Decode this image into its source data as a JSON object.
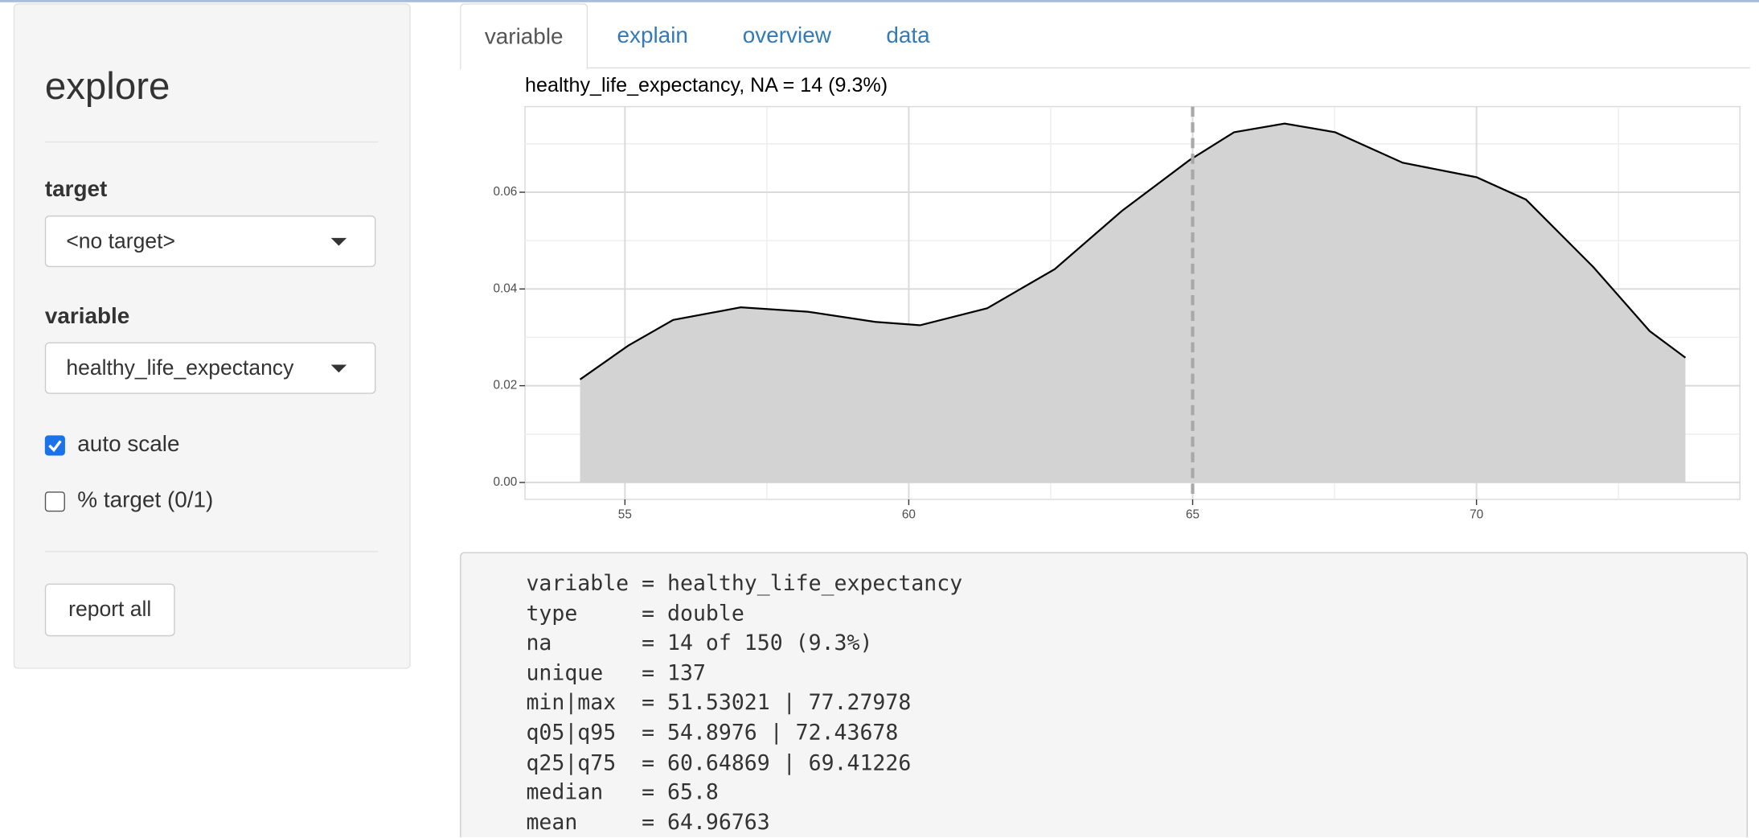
{
  "sidebar": {
    "title": "explore",
    "target_label": "target",
    "target_value": "<no target>",
    "variable_label": "variable",
    "variable_value": "healthy_life_expectancy",
    "auto_scale": {
      "label": "auto scale",
      "checked": true
    },
    "pct_target": {
      "label": "% target (0/1)",
      "checked": false
    },
    "button": "report all"
  },
  "tabs": {
    "items": [
      "variable",
      "explain",
      "overview",
      "data"
    ],
    "active": 0
  },
  "chart_data": {
    "type": "density",
    "title": "healthy_life_expectancy, NA = 14 (9.3%)",
    "x": [
      54.21,
      55.06,
      55.85,
      57.04,
      58.22,
      59.41,
      60.2,
      61.38,
      62.57,
      63.75,
      64.94,
      65.73,
      66.62,
      67.51,
      68.7,
      70.0,
      70.87,
      72.06,
      73.05,
      73.68
    ],
    "y": [
      0.0213,
      0.0283,
      0.0336,
      0.0362,
      0.0353,
      0.0332,
      0.0325,
      0.036,
      0.0441,
      0.0561,
      0.0666,
      0.0724,
      0.0742,
      0.0724,
      0.0661,
      0.0631,
      0.0585,
      0.0445,
      0.0313,
      0.0258
    ],
    "color": "#d3d3d3",
    "line_color": "#000000",
    "xlim": [
      53.24,
      74.64
    ],
    "ylim": [
      -0.0035,
      0.0777
    ],
    "xticks": [
      55,
      60,
      65,
      70
    ],
    "yticks": [
      {
        "value": 0,
        "label": "0.00"
      },
      {
        "value": 0.02,
        "label": "0.02"
      },
      {
        "value": 0.04,
        "label": "0.04"
      },
      {
        "value": 0.06,
        "label": "0.06"
      }
    ],
    "minor_xticks": [
      57.5,
      62.5,
      67.5,
      72.5
    ],
    "minor_yticks": [
      0.01,
      0.03,
      0.05,
      0.07
    ],
    "grid": true,
    "vline": 65
  },
  "summary": {
    "lines": [
      "variable = healthy_life_expectancy",
      "type     = double",
      "na       = 14 of 150 (9.3%)",
      "unique   = 137",
      "min|max  = 51.53021 | 77.27978",
      "q05|q95  = 54.8976 | 72.43678",
      "q25|q75  = 60.64869 | 69.41226",
      "median   = 65.8",
      "mean     = 64.96763"
    ]
  }
}
